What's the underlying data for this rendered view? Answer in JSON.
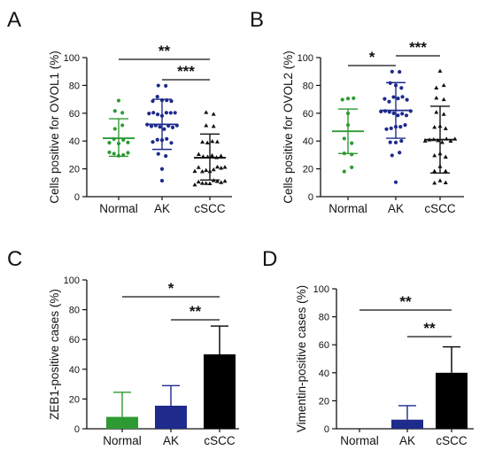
{
  "chart_data": [
    {
      "type": "scatter",
      "panel": "A",
      "ylabel": "Cells positive for OVOL1 (%)",
      "ylim": [
        0,
        100
      ],
      "yticks": [
        "0",
        "20",
        "40",
        "60",
        "80",
        "100"
      ],
      "categories": [
        "Normal",
        "AK",
        "cSCC"
      ],
      "series": [
        {
          "category": "Normal",
          "color": "#2e9a33",
          "marker": "circle",
          "mean": 42,
          "sd_low": 29,
          "sd_high": 56,
          "points": [
            70,
            60,
            60,
            50,
            50,
            40,
            40,
            40,
            40,
            40,
            30,
            30,
            30,
            30,
            30
          ]
        },
        {
          "category": "AK",
          "color": "#1e2a8c",
          "marker": "circle",
          "mean": 52,
          "sd_low": 34,
          "sd_high": 70,
          "points": [
            80,
            80,
            70,
            70,
            70,
            70,
            70,
            60,
            60,
            60,
            60,
            60,
            60,
            60,
            50,
            50,
            50,
            50,
            50,
            50,
            50,
            50,
            40,
            40,
            40,
            40,
            40,
            30,
            30,
            20,
            10
          ]
        },
        {
          "category": "cSCC",
          "color": "#111111",
          "marker": "triangle",
          "mean": 28,
          "sd_low": 12,
          "sd_high": 45,
          "points": [
            60,
            60,
            50,
            50,
            40,
            40,
            40,
            40,
            30,
            30,
            30,
            30,
            30,
            30,
            20,
            20,
            20,
            20,
            20,
            20,
            20,
            20,
            20,
            10,
            10,
            10,
            10,
            10,
            10,
            10,
            10,
            10
          ]
        }
      ],
      "significance": [
        {
          "from": "Normal",
          "to": "cSCC",
          "label": "**"
        },
        {
          "from": "AK",
          "to": "cSCC",
          "label": "***"
        }
      ]
    },
    {
      "type": "scatter",
      "panel": "B",
      "ylabel": "Cells positive for OVOL2 (%)",
      "ylim": [
        0,
        100
      ],
      "yticks": [
        "0",
        "20",
        "40",
        "60",
        "80",
        "100"
      ],
      "categories": [
        "Normal",
        "AK",
        "cSCC"
      ],
      "series": [
        {
          "category": "Normal",
          "color": "#2e9a33",
          "marker": "circle",
          "mean": 47,
          "sd_low": 31,
          "sd_high": 63,
          "points": [
            70,
            70,
            70,
            60,
            50,
            40,
            40,
            30,
            30,
            20,
            20
          ]
        },
        {
          "category": "AK",
          "color": "#1e2a8c",
          "marker": "circle",
          "mean": 62,
          "sd_low": 42,
          "sd_high": 82,
          "points": [
            90,
            90,
            80,
            80,
            80,
            70,
            70,
            70,
            70,
            70,
            70,
            60,
            60,
            60,
            60,
            60,
            60,
            60,
            60,
            50,
            50,
            50,
            50,
            50,
            40,
            40,
            40,
            30,
            30,
            10
          ]
        },
        {
          "category": "cSCC",
          "color": "#111111",
          "marker": "triangle",
          "mean": 41,
          "sd_low": 17,
          "sd_high": 65,
          "points": [
            90,
            80,
            80,
            70,
            70,
            60,
            60,
            50,
            50,
            50,
            40,
            40,
            40,
            40,
            40,
            40,
            40,
            40,
            30,
            30,
            30,
            20,
            20,
            20,
            10,
            10,
            10
          ]
        }
      ],
      "significance": [
        {
          "from": "Normal",
          "to": "AK",
          "label": "*"
        },
        {
          "from": "AK",
          "to": "cSCC",
          "label": "***"
        }
      ]
    },
    {
      "type": "bar",
      "panel": "C",
      "ylabel": "ZEB1-positive cases (%)",
      "ylim": [
        0,
        100
      ],
      "yticks": [
        "0",
        "20",
        "40",
        "60",
        "80",
        "100"
      ],
      "categories": [
        "Normal",
        "AK",
        "cSCC"
      ],
      "values": [
        8,
        15.5,
        50
      ],
      "error_high": [
        24.5,
        29,
        69
      ],
      "colors": [
        "#2e9a33",
        "#1e2a8c",
        "#000000"
      ],
      "significance": [
        {
          "from": "Normal",
          "to": "cSCC",
          "label": "*"
        },
        {
          "from": "AK",
          "to": "cSCC",
          "label": "**"
        }
      ]
    },
    {
      "type": "bar",
      "panel": "D",
      "ylabel": "Vimentin-positive cases (%)",
      "ylim": [
        0,
        100
      ],
      "yticks": [
        "0",
        "20",
        "40",
        "60",
        "80",
        "100"
      ],
      "categories": [
        "Normal",
        "AK",
        "cSCC"
      ],
      "values": [
        0,
        6.5,
        40
      ],
      "error_high": [
        0,
        16.5,
        58.5
      ],
      "colors": [
        "#2e9a33",
        "#1e2a8c",
        "#000000"
      ],
      "significance": [
        {
          "from": "Normal",
          "to": "cSCC",
          "label": "**"
        },
        {
          "from": "AK",
          "to": "cSCC",
          "label": "**"
        }
      ]
    }
  ]
}
